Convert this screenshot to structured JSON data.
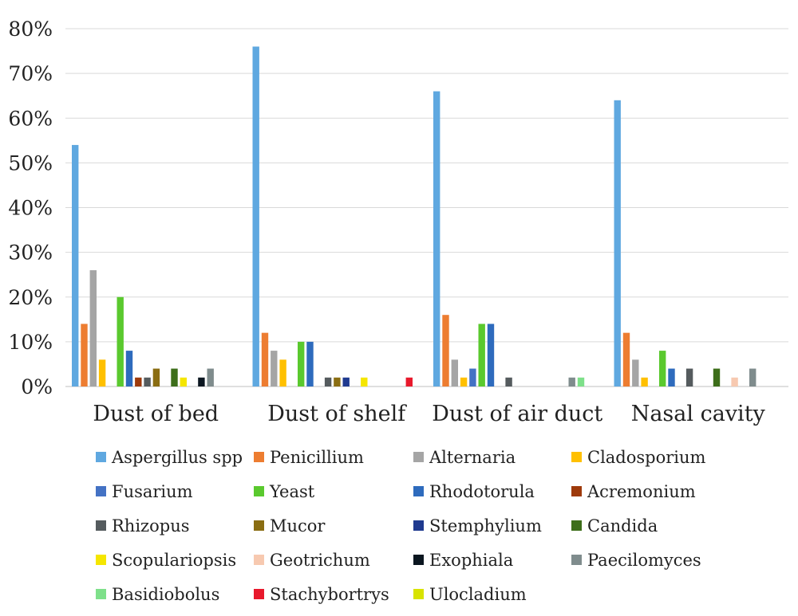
{
  "chart_data": {
    "type": "bar",
    "title": "",
    "xlabel": "",
    "ylabel": "",
    "ylim": [
      0,
      80
    ],
    "y_ticks": [
      "0%",
      "10%",
      "20%",
      "30%",
      "40%",
      "50%",
      "60%",
      "70%",
      "80%"
    ],
    "grid": true,
    "legend_position": "bottom",
    "categories": [
      "Dust of bed",
      "Dust of shelf",
      "Dust of air duct",
      "Nasal cavity"
    ],
    "series": [
      {
        "name": "Aspergillus spp",
        "color": "#5fa8e0",
        "values": [
          54,
          76,
          66,
          64
        ]
      },
      {
        "name": "Penicillium",
        "color": "#ed7d31",
        "values": [
          14,
          12,
          16,
          12
        ]
      },
      {
        "name": "Alternaria",
        "color": "#a5a5a5",
        "values": [
          26,
          8,
          6,
          6
        ]
      },
      {
        "name": "Cladosporium",
        "color": "#ffc000",
        "values": [
          6,
          6,
          2,
          2
        ]
      },
      {
        "name": "Fusarium",
        "color": "#4472c4",
        "values": [
          0,
          0,
          4,
          0
        ]
      },
      {
        "name": "Yeast",
        "color": "#5ac92e",
        "values": [
          20,
          10,
          14,
          8
        ]
      },
      {
        "name": "Rhodotorula",
        "color": "#2e6bbd",
        "values": [
          8,
          10,
          14,
          4
        ]
      },
      {
        "name": "Acremonium",
        "color": "#9e3a0b",
        "values": [
          2,
          0,
          0,
          0
        ]
      },
      {
        "name": "Rhizopus",
        "color": "#555b5e",
        "values": [
          2,
          2,
          2,
          4
        ]
      },
      {
        "name": "Mucor",
        "color": "#8a6d12",
        "values": [
          4,
          2,
          0,
          0
        ]
      },
      {
        "name": "Stemphylium",
        "color": "#1f3a8f",
        "values": [
          0,
          2,
          0,
          0
        ]
      },
      {
        "name": "Candida",
        "color": "#3d6e1a",
        "values": [
          4,
          0,
          0,
          4
        ]
      },
      {
        "name": "Scopulariopsis",
        "color": "#f5e600",
        "values": [
          2,
          2,
          0,
          0
        ]
      },
      {
        "name": "Geotrichum",
        "color": "#f7c9b0",
        "values": [
          0,
          0,
          0,
          2
        ]
      },
      {
        "name": "Exophiala",
        "color": "#0b1620",
        "values": [
          2,
          0,
          0,
          0
        ]
      },
      {
        "name": "Paecilomyces",
        "color": "#7f8c8d",
        "values": [
          4,
          0,
          2,
          4
        ]
      },
      {
        "name": "Basidiobolus",
        "color": "#7ee08a",
        "values": [
          0,
          0,
          2,
          0
        ]
      },
      {
        "name": "Stachybortrys",
        "color": "#e8192c",
        "values": [
          0,
          2,
          0,
          0
        ]
      },
      {
        "name": "Ulocladium",
        "color": "#d8e300",
        "values": [
          0,
          0,
          0,
          0
        ]
      }
    ]
  }
}
